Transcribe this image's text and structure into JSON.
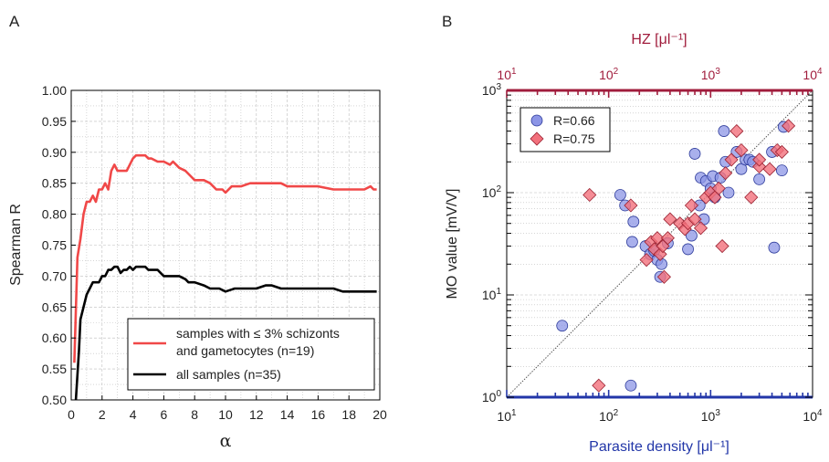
{
  "panel_labels": [
    "A",
    "B"
  ],
  "colors": {
    "red_line": "#f04848",
    "black_line": "#000000",
    "circle_fill": "#8c95e6",
    "diamond_fill": "#f2707c",
    "top_axis": "#a01c3c",
    "bottom_axis": "#2236a8",
    "grid": "#bdbdbd"
  },
  "chart_data": [
    {
      "type": "line",
      "xlabel": "α",
      "ylabel": "Spearman R",
      "xlim": [
        0,
        20
      ],
      "ylim": [
        0.5,
        1.0
      ],
      "x_ticks": [
        "0",
        "2",
        "4",
        "6",
        "8",
        "10",
        "12",
        "14",
        "16",
        "18",
        "20"
      ],
      "y_ticks": [
        "0.50",
        "0.55",
        "0.60",
        "0.65",
        "0.70",
        "0.75",
        "0.80",
        "0.85",
        "0.90",
        "0.95",
        "1.00"
      ],
      "grid": true,
      "legend_position": "bottom-right",
      "series": [
        {
          "name": "samples with ≤ 3% schizonts and gametocytes (n=19)",
          "legend_lines": [
            "samples with ≤ 3% schizonts",
            "and gametocytes (n=19)"
          ],
          "x": [
            0.2,
            0.4,
            0.6,
            0.8,
            1.0,
            1.2,
            1.4,
            1.6,
            1.8,
            2.0,
            2.2,
            2.4,
            2.6,
            2.8,
            3.0,
            3.2,
            3.6,
            4.0,
            4.2,
            4.4,
            4.8,
            5.0,
            5.2,
            5.6,
            6.0,
            6.4,
            6.6,
            7.0,
            7.4,
            7.8,
            8.0,
            8.6,
            9.0,
            9.4,
            9.8,
            10.0,
            10.4,
            11.0,
            11.6,
            12.0,
            12.4,
            13.0,
            13.6,
            14.0,
            14.4,
            15.0,
            16.0,
            17.0,
            18.0,
            19.0,
            19.4,
            19.6,
            19.8
          ],
          "y": [
            0.56,
            0.73,
            0.76,
            0.8,
            0.82,
            0.82,
            0.83,
            0.82,
            0.84,
            0.84,
            0.85,
            0.84,
            0.87,
            0.88,
            0.87,
            0.87,
            0.87,
            0.89,
            0.895,
            0.895,
            0.895,
            0.89,
            0.89,
            0.885,
            0.885,
            0.88,
            0.885,
            0.875,
            0.87,
            0.86,
            0.855,
            0.855,
            0.85,
            0.84,
            0.84,
            0.835,
            0.845,
            0.845,
            0.85,
            0.85,
            0.85,
            0.85,
            0.85,
            0.845,
            0.845,
            0.845,
            0.845,
            0.84,
            0.84,
            0.84,
            0.845,
            0.84,
            0.84
          ]
        },
        {
          "name": "all samples (n=35)",
          "legend_lines": [
            "all samples (n=35)"
          ],
          "x": [
            0.3,
            0.5,
            0.6,
            0.8,
            1.0,
            1.2,
            1.4,
            1.6,
            1.8,
            2.0,
            2.2,
            2.4,
            2.6,
            2.8,
            3.0,
            3.2,
            3.4,
            3.6,
            3.8,
            4.0,
            4.2,
            4.4,
            4.8,
            5.0,
            5.2,
            5.6,
            6.0,
            6.4,
            7.0,
            7.4,
            7.6,
            8.0,
            8.6,
            9.0,
            9.6,
            10.0,
            10.6,
            11.0,
            11.6,
            12.0,
            12.6,
            13.0,
            13.6,
            14.0,
            15.0,
            16.0,
            17.0,
            17.6,
            18.0,
            19.0,
            19.8
          ],
          "y": [
            0.5,
            0.58,
            0.63,
            0.65,
            0.67,
            0.68,
            0.69,
            0.69,
            0.69,
            0.7,
            0.7,
            0.71,
            0.71,
            0.715,
            0.715,
            0.705,
            0.71,
            0.71,
            0.715,
            0.71,
            0.715,
            0.715,
            0.715,
            0.71,
            0.71,
            0.71,
            0.7,
            0.7,
            0.7,
            0.695,
            0.69,
            0.69,
            0.685,
            0.68,
            0.68,
            0.675,
            0.68,
            0.68,
            0.68,
            0.68,
            0.685,
            0.685,
            0.68,
            0.68,
            0.68,
            0.68,
            0.68,
            0.675,
            0.675,
            0.675,
            0.675
          ]
        }
      ]
    },
    {
      "type": "scatter",
      "xlabel": "Parasite density [μl⁻¹]",
      "top_xlabel": "HZ [μl⁻¹]",
      "ylabel": "MO value [mV/V]",
      "x_scale": "log",
      "y_scale": "log",
      "xlim": [
        10,
        10000
      ],
      "ylim": [
        1,
        1000
      ],
      "x_tick_exponents": [
        "1",
        "2",
        "3",
        "4"
      ],
      "y_tick_exponents": [
        "0",
        "1",
        "2",
        "3"
      ],
      "tick_base": "10",
      "grid": "horizontal",
      "diagonal_reference_line": true,
      "legend_position": "top-left",
      "series": [
        {
          "name": "R=0.66",
          "marker": "circle",
          "x": [
            35,
            130,
            145,
            165,
            170,
            175,
            230,
            255,
            280,
            300,
            320,
            330,
            380,
            600,
            650,
            700,
            780,
            800,
            860,
            900,
            1000,
            1050,
            1100,
            1250,
            1350,
            1400,
            1500,
            1800,
            2000,
            2200,
            2400,
            2600,
            3000,
            4000,
            4200,
            5000,
            5200
          ],
          "y": [
            5,
            95,
            75,
            1.3,
            33,
            52,
            30,
            25,
            27,
            22,
            15,
            20,
            32,
            28,
            38,
            240,
            75,
            140,
            55,
            130,
            110,
            145,
            90,
            140,
            400,
            200,
            100,
            250,
            170,
            210,
            210,
            200,
            135,
            250,
            29,
            165,
            440
          ]
        },
        {
          "name": "R=0.75",
          "marker": "diamond",
          "x": [
            65,
            80,
            165,
            235,
            260,
            280,
            300,
            320,
            340,
            350,
            380,
            400,
            500,
            560,
            600,
            650,
            700,
            800,
            900,
            1000,
            1100,
            1200,
            1300,
            1400,
            1600,
            1800,
            2000,
            2500,
            3000,
            3000,
            3800,
            4500,
            5000,
            5800
          ],
          "y": [
            95,
            1.3,
            75,
            22,
            33,
            28,
            36,
            25,
            30,
            15,
            36,
            55,
            50,
            44,
            50,
            75,
            55,
            45,
            90,
            100,
            90,
            110,
            30,
            155,
            210,
            400,
            260,
            90,
            180,
            210,
            170,
            260,
            250,
            450
          ]
        }
      ]
    }
  ]
}
